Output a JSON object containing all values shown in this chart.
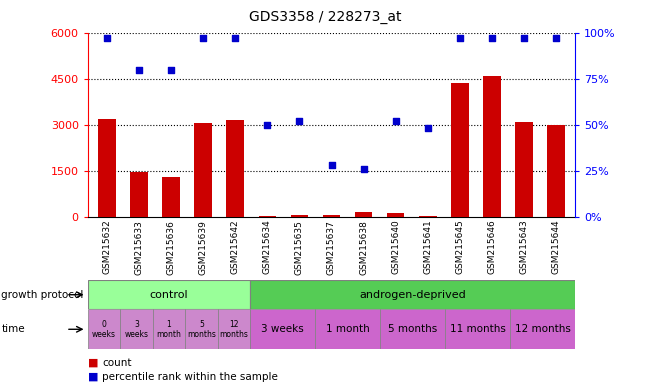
{
  "title": "GDS3358 / 228273_at",
  "samples": [
    "GSM215632",
    "GSM215633",
    "GSM215636",
    "GSM215639",
    "GSM215642",
    "GSM215634",
    "GSM215635",
    "GSM215637",
    "GSM215638",
    "GSM215640",
    "GSM215641",
    "GSM215645",
    "GSM215646",
    "GSM215643",
    "GSM215644"
  ],
  "counts": [
    3200,
    1450,
    1300,
    3050,
    3150,
    30,
    80,
    80,
    150,
    120,
    30,
    4350,
    4600,
    3100,
    3000
  ],
  "percentiles": [
    97,
    80,
    80,
    97,
    97,
    50,
    52,
    28,
    26,
    52,
    48,
    97,
    97,
    97,
    97
  ],
  "ylim_left": [
    0,
    6000
  ],
  "ylim_right": [
    0,
    100
  ],
  "yticks_left": [
    0,
    1500,
    3000,
    4500,
    6000
  ],
  "yticks_right": [
    0,
    25,
    50,
    75,
    100
  ],
  "bar_color": "#cc0000",
  "dot_color": "#0000cc",
  "control_color": "#99ff99",
  "androgen_color": "#55cc55",
  "time_ctrl_color": "#cc88cc",
  "time_and_color": "#cc66cc",
  "protocol_label": "growth protocol",
  "time_label": "time",
  "time_labels_control": [
    "0\nweeks",
    "3\nweeks",
    "1\nmonth",
    "5\nmonths",
    "12\nmonths"
  ],
  "time_labels_androgen": [
    "3 weeks",
    "1 month",
    "5 months",
    "11 months",
    "12 months"
  ],
  "time_widths_androgen": [
    2,
    2,
    2,
    2,
    2
  ],
  "legend_count": "count",
  "legend_pct": "percentile rank within the sample"
}
